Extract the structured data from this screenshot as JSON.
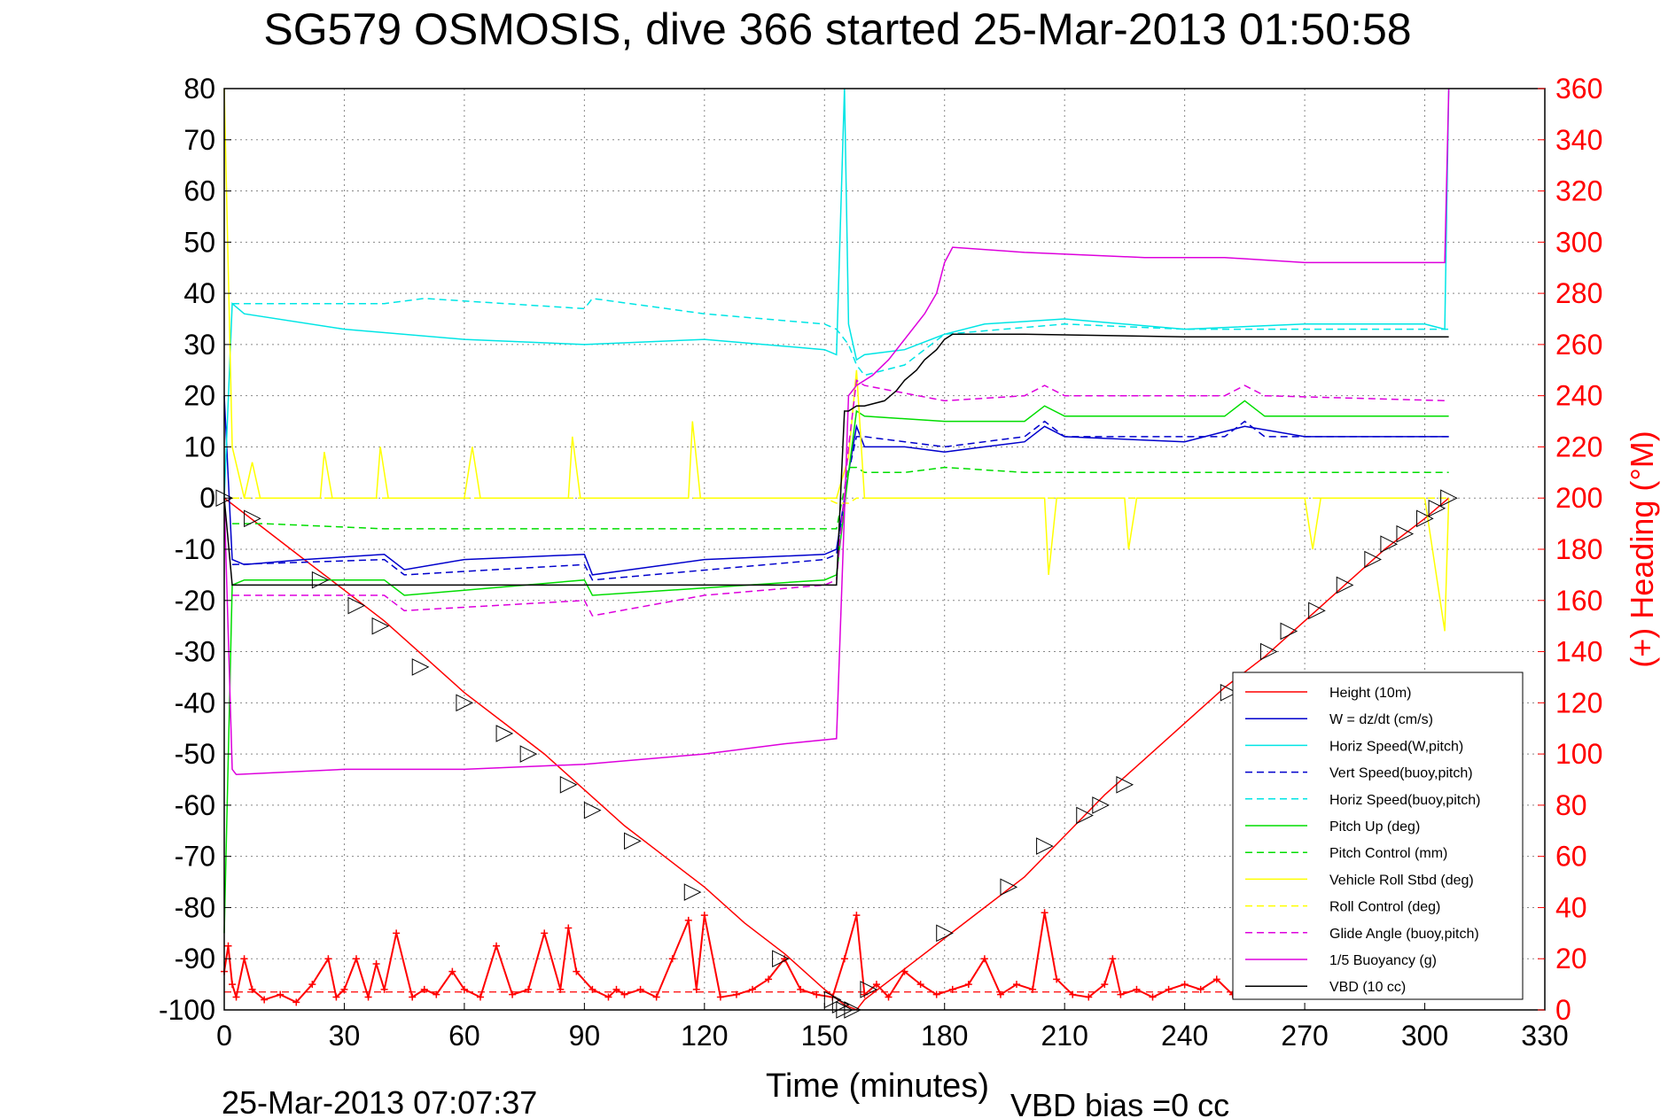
{
  "chart_data": {
    "type": "line",
    "title": "SG579 OSMOSIS, dive 366 started 25-Mar-2013 01:50:58",
    "xlabel": "Time (minutes)",
    "ylabel": "",
    "y2label": "(+) Heading (°M)",
    "footer_left": "25-Mar-2013 07:07:37",
    "footer_right": "VBD bias =0 cc",
    "xlim": [
      0,
      330
    ],
    "ylim": [
      -100,
      80
    ],
    "y2lim": [
      0,
      360
    ],
    "xticks": [
      0,
      30,
      60,
      90,
      120,
      150,
      180,
      210,
      240,
      270,
      300,
      330
    ],
    "yticks": [
      80,
      70,
      60,
      50,
      40,
      30,
      20,
      10,
      0,
      -10,
      -20,
      -30,
      -40,
      -50,
      -60,
      -70,
      -80,
      -90,
      -100
    ],
    "y2ticks": [
      360,
      340,
      320,
      300,
      280,
      260,
      240,
      220,
      200,
      180,
      160,
      140,
      120,
      100,
      80,
      60,
      40,
      20,
      0
    ],
    "grid": true,
    "legend_position": "bottom-right",
    "colors": {
      "height": "#ff0000",
      "w": "#0000cc",
      "horiz": "#00e5e5",
      "pitch": "#00dd00",
      "roll": "#ffff00",
      "glide": "#dd00dd",
      "vbd": "#000000",
      "heading": "#ff0000"
    },
    "series": [
      {
        "name": "Height (10m)",
        "style": "solid",
        "color": "#ff0000",
        "x": [
          0,
          10,
          20,
          30,
          40,
          50,
          60,
          70,
          80,
          90,
          100,
          110,
          120,
          130,
          140,
          150,
          155,
          158,
          160,
          170,
          180,
          190,
          200,
          210,
          220,
          230,
          240,
          250,
          260,
          270,
          280,
          290,
          300,
          306
        ],
        "values": [
          0,
          -6,
          -12,
          -18,
          -24,
          -31,
          -38,
          -44,
          -50,
          -57,
          -64,
          -70,
          -76,
          -83,
          -89,
          -96,
          -99,
          -100,
          -98,
          -92,
          -86,
          -80,
          -74,
          -66,
          -58,
          -51,
          -44,
          -37,
          -31,
          -24,
          -17,
          -10,
          -4,
          0
        ]
      },
      {
        "name": "W = dz/dt (cm/s)",
        "style": "solid",
        "color": "#0000cc",
        "x": [
          0,
          2,
          5,
          20,
          40,
          45,
          60,
          90,
          92,
          120,
          150,
          153,
          156,
          158,
          160,
          170,
          180,
          190,
          200,
          205,
          210,
          240,
          255,
          270,
          300,
          306
        ],
        "values": [
          20,
          -12,
          -13,
          -12,
          -11,
          -14,
          -12,
          -11,
          -15,
          -12,
          -11,
          -10,
          5,
          14,
          10,
          10,
          9,
          10,
          11,
          14,
          12,
          11,
          14,
          12,
          12,
          12
        ]
      },
      {
        "name": "Horiz Speed(W,pitch)",
        "style": "solid",
        "color": "#00e5e5",
        "x": [
          0,
          2,
          5,
          30,
          60,
          90,
          120,
          150,
          153,
          155,
          156,
          158,
          160,
          170,
          180,
          190,
          210,
          240,
          270,
          300,
          305,
          306
        ],
        "values": [
          0,
          38,
          36,
          33,
          31,
          30,
          31,
          29,
          28,
          80,
          34,
          27,
          28,
          29,
          32,
          34,
          35,
          33,
          34,
          34,
          33,
          80
        ]
      },
      {
        "name": "Vert Speed(buoy,pitch)",
        "style": "dashed",
        "color": "#0000cc",
        "x": [
          2,
          40,
          45,
          90,
          92,
          150,
          153,
          156,
          158,
          160,
          180,
          200,
          205,
          210,
          250,
          255,
          260,
          306
        ],
        "values": [
          -13,
          -12,
          -15,
          -13,
          -16,
          -12,
          -11,
          5,
          12,
          12,
          10,
          12,
          15,
          12,
          12,
          15,
          12,
          12
        ]
      },
      {
        "name": "Horiz Speed(buoy,pitch)",
        "style": "dashed",
        "color": "#00e5e5",
        "x": [
          2,
          40,
          50,
          90,
          92,
          120,
          150,
          153,
          156,
          158,
          160,
          170,
          180,
          210,
          240,
          270,
          306
        ],
        "values": [
          38,
          38,
          39,
          37,
          39,
          36,
          34,
          33,
          30,
          26,
          24,
          26,
          32,
          34,
          33,
          33,
          33
        ]
      },
      {
        "name": "Pitch Up (deg)",
        "style": "solid",
        "color": "#00dd00",
        "x": [
          0,
          2,
          5,
          40,
          45,
          90,
          92,
          150,
          153,
          156,
          158,
          160,
          180,
          200,
          205,
          210,
          250,
          255,
          260,
          306
        ],
        "values": [
          -85,
          -17,
          -16,
          -16,
          -19,
          -16,
          -19,
          -16,
          -15,
          5,
          17,
          16,
          15,
          15,
          18,
          16,
          16,
          19,
          16,
          16
        ]
      },
      {
        "name": "Pitch Control (mm)",
        "style": "dashed",
        "color": "#00dd00",
        "x": [
          2,
          10,
          40,
          60,
          90,
          120,
          150,
          153,
          156,
          158,
          160,
          170,
          180,
          200,
          240,
          306
        ],
        "values": [
          -5,
          -5,
          -6,
          -6,
          -6,
          -6,
          -6,
          -6,
          6,
          6,
          5,
          5,
          6,
          5,
          5,
          5
        ]
      },
      {
        "name": "Vehicle Roll Stbd (deg)",
        "style": "solid",
        "color": "#ffff00",
        "x": [
          0,
          2,
          5,
          7,
          9,
          24,
          25,
          27,
          38,
          39,
          41,
          60,
          62,
          64,
          86,
          87,
          89,
          116,
          117,
          119,
          150,
          153,
          156,
          158,
          160,
          180,
          205,
          206,
          208,
          225,
          226,
          228,
          270,
          272,
          274,
          300,
          305,
          306
        ],
        "values": [
          80,
          10,
          0,
          7,
          0,
          0,
          9,
          0,
          0,
          10,
          0,
          0,
          10,
          0,
          0,
          12,
          0,
          0,
          15,
          0,
          0,
          0,
          8,
          25,
          0,
          0,
          0,
          -15,
          0,
          0,
          -10,
          0,
          0,
          -10,
          0,
          0,
          -26,
          0
        ]
      },
      {
        "name": "Roll Control (deg)",
        "style": "dashed",
        "color": "#ffff00",
        "x": [
          2,
          150,
          153,
          156,
          158,
          306
        ],
        "values": [
          0,
          0,
          -1,
          -1,
          0,
          0
        ]
      },
      {
        "name": "Glide Angle (buoy,pitch)",
        "style": "dashed",
        "color": "#dd00dd",
        "x": [
          2,
          40,
          45,
          90,
          92,
          120,
          150,
          153,
          156,
          158,
          160,
          180,
          200,
          205,
          210,
          250,
          255,
          260,
          306
        ],
        "values": [
          -19,
          -19,
          -22,
          -20,
          -23,
          -19,
          -17,
          -16,
          10,
          23,
          22,
          19,
          20,
          22,
          20,
          20,
          22,
          20,
          19
        ]
      },
      {
        "name": "1/5 Buoyancy (g)",
        "style": "solid",
        "color": "#dd00dd",
        "x": [
          0,
          2,
          3,
          30,
          60,
          90,
          120,
          140,
          153,
          156,
          158,
          162,
          166,
          170,
          175,
          178,
          180,
          182,
          200,
          230,
          250,
          270,
          290,
          305,
          306
        ],
        "values": [
          0,
          -53,
          -54,
          -53,
          -53,
          -52,
          -50,
          -48,
          -47,
          20,
          22,
          24,
          27,
          31,
          36,
          40,
          46,
          49,
          48,
          47,
          47,
          46,
          46,
          46,
          80
        ]
      },
      {
        "name": "VBD (10 cc)",
        "style": "solid",
        "color": "#000000",
        "x": [
          0,
          2,
          5,
          60,
          120,
          150,
          153,
          155,
          156,
          158,
          160,
          165,
          168,
          170,
          173,
          175,
          178,
          180,
          182,
          200,
          240,
          270,
          306
        ],
        "values": [
          0,
          -17,
          -17,
          -17,
          -17,
          -17,
          -17,
          17,
          17,
          18,
          18,
          19,
          21,
          23,
          25,
          27,
          29,
          31,
          32,
          32,
          31.5,
          31.5,
          31.5
        ]
      }
    ],
    "heading": {
      "name": "(+) Heading (°M)",
      "color": "#ff0000",
      "axis": "right",
      "x": [
        0,
        1,
        2,
        3,
        5,
        7,
        10,
        14,
        18,
        22,
        26,
        28,
        30,
        33,
        36,
        38,
        40,
        43,
        47,
        50,
        53,
        57,
        60,
        64,
        68,
        72,
        76,
        80,
        84,
        86,
        88,
        92,
        96,
        98,
        100,
        104,
        108,
        112,
        116,
        118,
        120,
        124,
        128,
        132,
        136,
        140,
        144,
        148,
        152,
        155,
        158,
        160,
        163,
        166,
        170,
        174,
        178,
        182,
        186,
        190,
        194,
        198,
        202,
        205,
        208,
        212,
        216,
        220,
        222,
        224,
        228,
        232,
        236,
        240,
        244,
        248,
        252,
        256,
        260,
        264,
        268,
        272,
        276,
        280,
        284,
        288,
        292,
        296,
        300,
        304,
        306
      ],
      "values": [
        15,
        25,
        10,
        5,
        20,
        8,
        4,
        6,
        3,
        10,
        20,
        5,
        8,
        20,
        5,
        18,
        8,
        30,
        5,
        8,
        6,
        15,
        8,
        5,
        25,
        6,
        8,
        30,
        8,
        32,
        15,
        8,
        5,
        8,
        6,
        8,
        5,
        20,
        35,
        8,
        37,
        5,
        6,
        8,
        12,
        20,
        8,
        6,
        5,
        20,
        37,
        6,
        10,
        5,
        15,
        10,
        6,
        8,
        10,
        20,
        6,
        10,
        8,
        38,
        12,
        6,
        5,
        10,
        20,
        6,
        8,
        5,
        8,
        10,
        8,
        12,
        6,
        8,
        15,
        8,
        10,
        8,
        10,
        12,
        8,
        10,
        8,
        10,
        8,
        10,
        8
      ]
    },
    "heading_dashed_level": 7,
    "dive_markers": {
      "x": [
        0,
        7,
        24,
        33,
        39,
        49,
        60,
        70,
        76,
        86,
        92,
        102,
        117,
        139,
        152,
        154,
        155,
        157,
        161,
        180,
        196,
        205,
        215,
        219,
        225,
        251,
        261,
        266,
        273,
        280,
        287,
        291,
        295,
        300,
        303,
        306
      ],
      "values": [
        0,
        -4,
        -16,
        -21,
        -25,
        -33,
        -40,
        -46,
        -50,
        -56,
        -61,
        -67,
        -77,
        -90,
        -98,
        -99,
        -100,
        -100,
        -96,
        -85,
        -76,
        -68,
        -62,
        -60,
        -56,
        -38,
        -30,
        -26,
        -22,
        -17,
        -12,
        -9,
        -7,
        -4,
        -2,
        0
      ]
    }
  },
  "legend": {
    "items": [
      {
        "label": "Height (10m)",
        "color": "#ff0000",
        "dash": false
      },
      {
        "label": "W = dz/dt (cm/s)",
        "color": "#0000cc",
        "dash": false
      },
      {
        "label": "Horiz Speed(W,pitch)",
        "color": "#00e5e5",
        "dash": false
      },
      {
        "label": "Vert Speed(buoy,pitch)",
        "color": "#0000cc",
        "dash": true
      },
      {
        "label": "Horiz Speed(buoy,pitch)",
        "color": "#00e5e5",
        "dash": true
      },
      {
        "label": "Pitch Up (deg)",
        "color": "#00dd00",
        "dash": false
      },
      {
        "label": "Pitch Control (mm)",
        "color": "#00dd00",
        "dash": true
      },
      {
        "label": "Vehicle Roll Stbd (deg)",
        "color": "#ffff00",
        "dash": false
      },
      {
        "label": "Roll Control (deg)",
        "color": "#ffff00",
        "dash": true
      },
      {
        "label": "Glide Angle (buoy,pitch)",
        "color": "#dd00dd",
        "dash": true
      },
      {
        "label": "1/5 Buoyancy (g)",
        "color": "#dd00dd",
        "dash": false
      },
      {
        "label": "VBD (10 cc)",
        "color": "#000000",
        "dash": false
      }
    ]
  }
}
